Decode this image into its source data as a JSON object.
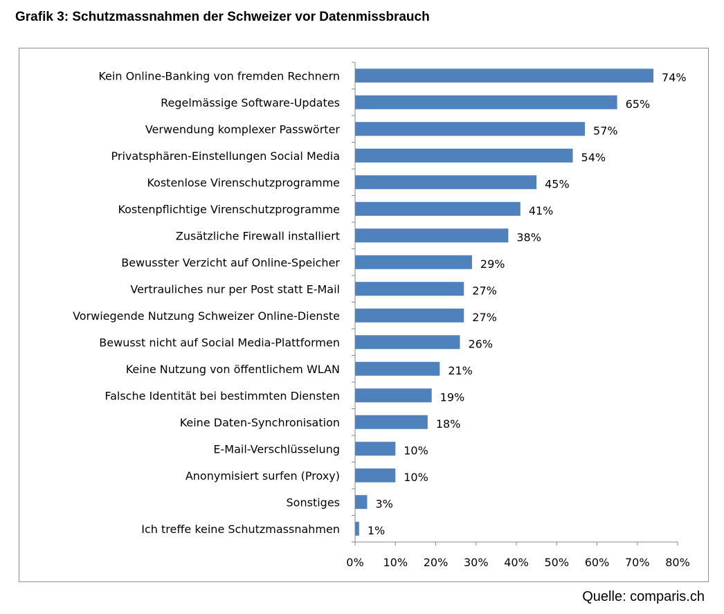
{
  "page": {
    "title": "Grafik 3: Schutzmassnahmen der Schweizer vor Datenmissbrauch",
    "source": "Quelle: comparis.ch"
  },
  "colors": {
    "bar": "#4f81bd",
    "axis": "#868686",
    "frame": "#8c8c8c",
    "text": "#000000"
  },
  "chart_data": {
    "type": "bar",
    "orientation": "horizontal",
    "title": "",
    "xlabel": "",
    "ylabel": "",
    "xlim": [
      0,
      80
    ],
    "xticks": [
      "0%",
      "10%",
      "20%",
      "30%",
      "40%",
      "50%",
      "60%",
      "70%",
      "80%"
    ],
    "grid": false,
    "legend": "none",
    "categories": [
      "Kein Online-Banking von fremden Rechnern",
      "Regelmässige Software-Updates",
      "Verwendung komplexer Passwörter",
      "Privatsphären-Einstellungen Social Media",
      "Kostenlose Virenschutzprogramme",
      "Kostenpflichtige Virenschutzprogramme",
      "Zusätzliche Firewall installiert",
      "Bewusster Verzicht auf Online-Speicher",
      "Vertrauliches nur per Post statt E-Mail",
      "Vorwiegende Nutzung Schweizer Online-Dienste",
      "Bewusst nicht auf Social Media-Plattformen",
      "Keine Nutzung von öffentlichem WLAN",
      "Falsche Identität bei bestimmten Diensten",
      "Keine Daten-Synchronisation",
      "E-Mail-Verschlüsselung",
      "Anonymisiert surfen (Proxy)",
      "Sonstiges",
      "Ich treffe keine Schutzmassnahmen"
    ],
    "values": [
      74,
      65,
      57,
      54,
      45,
      41,
      38,
      29,
      27,
      27,
      26,
      21,
      19,
      18,
      10,
      10,
      3,
      1
    ],
    "value_labels": [
      "74%",
      "65%",
      "57%",
      "54%",
      "45%",
      "41%",
      "38%",
      "29%",
      "27%",
      "27%",
      "26%",
      "21%",
      "19%",
      "18%",
      "10%",
      "10%",
      "3%",
      "1%"
    ]
  }
}
